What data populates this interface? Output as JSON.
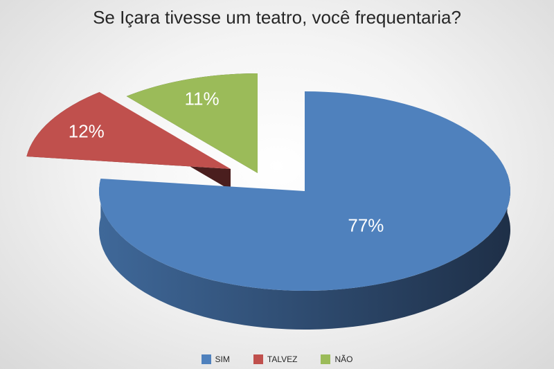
{
  "chart_data": {
    "type": "pie",
    "title": "Se Içara tivesse um teatro, você frequentaria?",
    "slices": [
      {
        "label": "SIM",
        "value": 77,
        "data_label": "77%",
        "color": "#4F81BD"
      },
      {
        "label": "TALVEZ",
        "value": 12,
        "data_label": "12%",
        "color": "#C0504D"
      },
      {
        "label": "NÃO",
        "value": 11,
        "data_label": "11%",
        "color": "#9BBB59"
      }
    ],
    "three_d": true,
    "exploded": true,
    "legend_position": "bottom"
  }
}
